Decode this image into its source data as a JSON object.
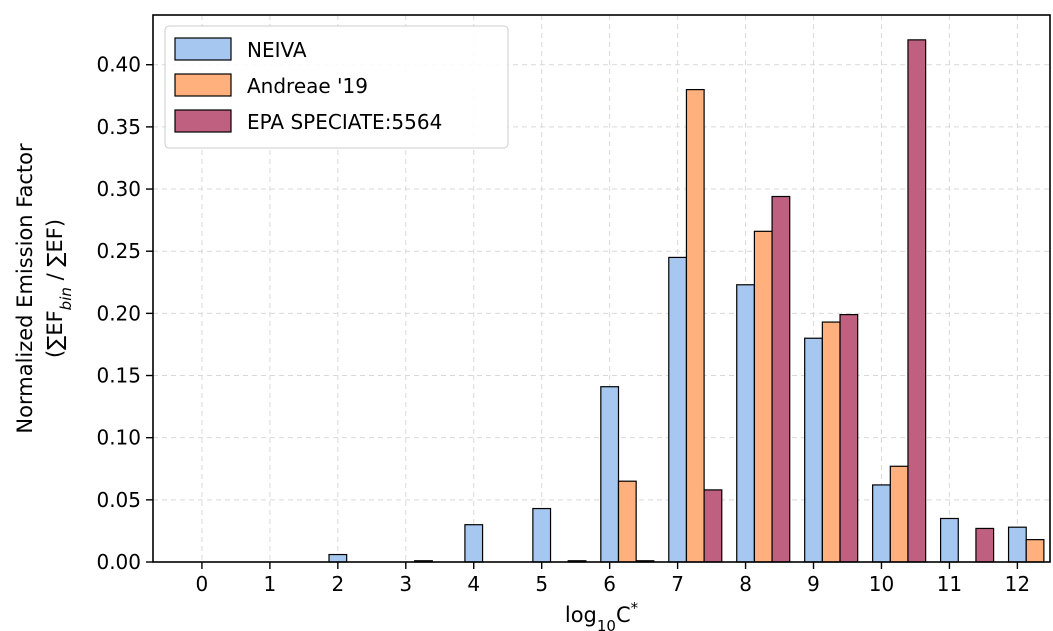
{
  "chart_data": {
    "type": "bar",
    "categories": [
      "0",
      "1",
      "2",
      "3",
      "4",
      "5",
      "6",
      "7",
      "8",
      "9",
      "10",
      "11",
      "12"
    ],
    "series": [
      {
        "name": "NEIVA",
        "color": "#a6c8f0",
        "values": [
          0,
          0,
          0.006,
          0,
          0.03,
          0.043,
          0.141,
          0.245,
          0.223,
          0.18,
          0.062,
          0.035,
          0.028
        ]
      },
      {
        "name": "Andreae '19",
        "color": "#ffb07c",
        "values": [
          0,
          0,
          0,
          0.001,
          0,
          0,
          0.065,
          0.38,
          0.266,
          0.193,
          0.077,
          0,
          0.018
        ]
      },
      {
        "name": "EPA SPECIATE:5564",
        "color": "#c06080",
        "values": [
          0,
          0,
          0,
          0,
          0,
          0.001,
          0.001,
          0.058,
          0.294,
          0.199,
          0.42,
          0.027,
          0
        ]
      }
    ],
    "xlabel": "log₁₀C*",
    "xlabel_main": "log",
    "xlabel_sub": "10",
    "xlabel_tail": "C",
    "xlabel_sup": "*",
    "ylabel_line1": "Normalized Emission Factor",
    "ylabel_line2_open": "(∑EF",
    "ylabel_line2_sub": "bin",
    "ylabel_line2_close": " / ∑EF)",
    "ylim": [
      0,
      0.44
    ],
    "yticks": [
      "0.00",
      "0.05",
      "0.10",
      "0.15",
      "0.20",
      "0.25",
      "0.30",
      "0.35",
      "0.40"
    ],
    "grid": true,
    "legend_position": "top-left"
  }
}
